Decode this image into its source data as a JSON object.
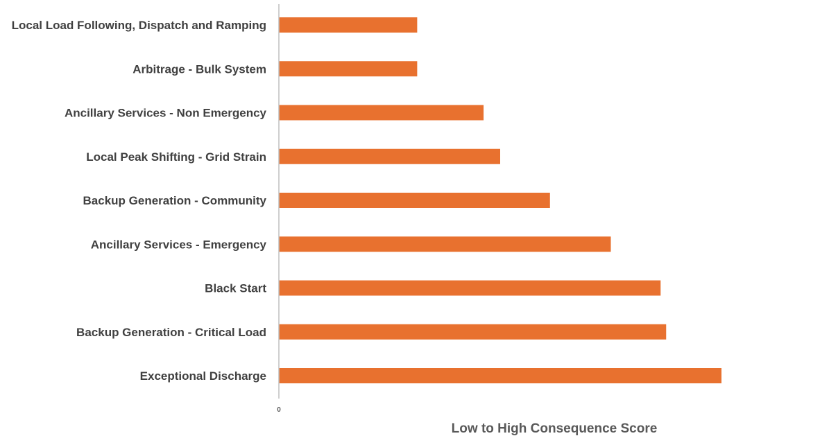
{
  "chart_data": {
    "type": "bar",
    "orientation": "horizontal",
    "categories": [
      "Local Load Following, Dispatch and Ramping",
      "Arbitrage - Bulk System",
      "Ancillary Services - Non Emergency",
      "Local Peak Shifting - Grid Strain",
      "Backup Generation - Community",
      "Ancillary Services - Emergency",
      "Black Start",
      "Backup Generation - Critical Load",
      "Exceptional Discharge"
    ],
    "values": [
      2.5,
      2.5,
      3.7,
      4.0,
      4.9,
      6.0,
      6.9,
      7.0,
      8.0
    ],
    "xlabel": "Low to High Consequence Score",
    "ylabel": "",
    "xlim": [
      0,
      8
    ],
    "x_ticks": [
      "0"
    ],
    "grid": false,
    "legend": "none",
    "bar_color": "#E8712F",
    "axis_color": "#BFBFBF"
  }
}
